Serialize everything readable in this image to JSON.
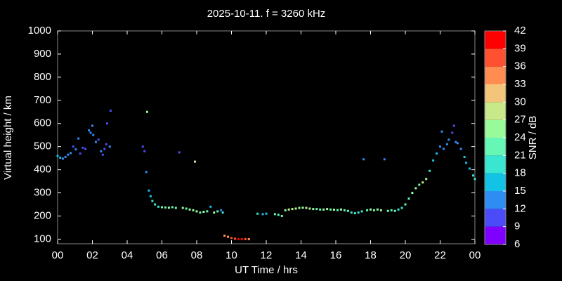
{
  "chart_data": {
    "type": "scatter",
    "title": "2025-10-11. f = 3260 kHz",
    "x_label": "UT Time / hrs",
    "y_label": "Virtual height / km",
    "colorbar_label": "SNR / dB",
    "x": [
      0.0,
      0.15,
      0.3,
      0.45,
      0.6,
      0.75,
      0.9,
      1.05,
      1.2,
      1.3,
      1.45,
      1.6,
      1.8,
      1.9,
      2.0,
      2.05,
      2.2,
      2.35,
      2.5,
      2.6,
      2.7,
      2.8,
      2.85,
      3.0,
      3.05,
      4.9,
      5.0,
      5.1,
      5.15,
      5.25,
      5.35,
      5.45,
      5.6,
      5.8,
      6.0,
      6.2,
      6.4,
      6.6,
      6.8,
      7.0,
      7.2,
      7.4,
      7.6,
      7.8,
      7.9,
      8.0,
      8.2,
      8.4,
      8.6,
      8.8,
      9.0,
      9.2,
      9.4,
      9.5,
      9.6,
      9.8,
      10.0,
      10.2,
      10.4,
      10.6,
      10.8,
      11.0,
      11.5,
      11.8,
      12.0,
      12.5,
      12.7,
      12.9,
      13.1,
      13.3,
      13.5,
      13.7,
      13.9,
      14.1,
      14.3,
      14.5,
      14.7,
      14.9,
      15.1,
      15.3,
      15.5,
      15.7,
      15.9,
      16.1,
      16.3,
      16.5,
      16.7,
      16.9,
      17.1,
      17.3,
      17.5,
      17.6,
      17.8,
      18.0,
      18.2,
      18.4,
      18.6,
      18.8,
      19.0,
      19.2,
      19.4,
      19.6,
      19.8,
      20.0,
      20.2,
      20.4,
      20.6,
      20.8,
      21.0,
      21.2,
      21.4,
      21.6,
      21.8,
      22.0,
      22.1,
      22.2,
      22.4,
      22.5,
      22.7,
      22.8,
      22.9,
      23.0,
      23.2,
      23.4,
      23.5,
      23.7,
      23.9,
      24.0
    ],
    "values": [
      460,
      452,
      448,
      455,
      465,
      472,
      500,
      488,
      535,
      470,
      495,
      490,
      570,
      560,
      590,
      550,
      520,
      530,
      480,
      465,
      490,
      510,
      600,
      500,
      655,
      500,
      480,
      390,
      650,
      310,
      285,
      265,
      250,
      240,
      238,
      237,
      236,
      238,
      235,
      475,
      235,
      232,
      228,
      225,
      435,
      220,
      215,
      218,
      220,
      240,
      215,
      220,
      225,
      215,
      115,
      110,
      105,
      102,
      100,
      100,
      100,
      100,
      210,
      208,
      210,
      208,
      205,
      200,
      225,
      228,
      230,
      232,
      235,
      236,
      235,
      232,
      230,
      230,
      228,
      228,
      230,
      228,
      227,
      226,
      228,
      225,
      222,
      215,
      212,
      215,
      220,
      445,
      225,
      228,
      225,
      228,
      225,
      445,
      222,
      225,
      222,
      228,
      235,
      250,
      275,
      300,
      320,
      335,
      345,
      360,
      395,
      440,
      470,
      500,
      565,
      490,
      510,
      530,
      560,
      590,
      520,
      515,
      490,
      455,
      430,
      405,
      375,
      360
    ],
    "snr": [
      15,
      15,
      14,
      14,
      13,
      13,
      11,
      12,
      12,
      11,
      11,
      11,
      13,
      12,
      12,
      12,
      12,
      11,
      12,
      11,
      11,
      11,
      11,
      12,
      10,
      11,
      11,
      13,
      26,
      17,
      17,
      18,
      20,
      20,
      21,
      23,
      24,
      22,
      23,
      11,
      24,
      23,
      25,
      26,
      27,
      24,
      23,
      24,
      21,
      15,
      24,
      22,
      14,
      18,
      33,
      34,
      36,
      38,
      40,
      39,
      36,
      35,
      18,
      17,
      16,
      22,
      23,
      22,
      25,
      27,
      24,
      29,
      26,
      25,
      27,
      24,
      25,
      23,
      22,
      24,
      26,
      23,
      24,
      22,
      25,
      23,
      21,
      19,
      18,
      18,
      20,
      14,
      22,
      24,
      23,
      26,
      25,
      14,
      21,
      23,
      22,
      20,
      19,
      21,
      22,
      24,
      24,
      23,
      27,
      25,
      19,
      17,
      15,
      13,
      13,
      12,
      12,
      12,
      11,
      11,
      12,
      12,
      14,
      15,
      15,
      17,
      18,
      18
    ],
    "xlim": [
      0,
      24
    ],
    "xticks": [
      {
        "value": 0,
        "label": "00"
      },
      {
        "value": 2,
        "label": "02"
      },
      {
        "value": 4,
        "label": "04"
      },
      {
        "value": 6,
        "label": "06"
      },
      {
        "value": 8,
        "label": "08"
      },
      10,
      12,
      14,
      16,
      18,
      20,
      22,
      {
        "value": 24,
        "label": "00"
      }
    ],
    "ylim": [
      80,
      1000
    ],
    "yticks": [
      100,
      200,
      300,
      400,
      500,
      600,
      700,
      800,
      900,
      1000
    ],
    "clim": [
      6,
      42
    ],
    "cticks": [
      6,
      9,
      12,
      15,
      18,
      21,
      24,
      27,
      30,
      33,
      36,
      39,
      42
    ],
    "colors": [
      "#8000ff",
      "#4b4cf7",
      "#2f8cf2",
      "#13c3e6",
      "#38e6d2",
      "#66f6b6",
      "#99fa9a",
      "#c8e88a",
      "#f2c57a",
      "#ff8c50",
      "#ff5030",
      "#ff0000"
    ]
  }
}
